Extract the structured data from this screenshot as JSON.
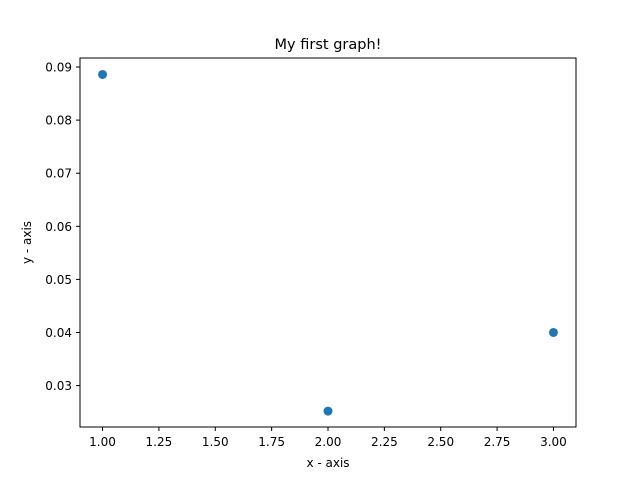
{
  "chart_data": {
    "type": "scatter",
    "title": "My first graph!",
    "xlabel": "x - axis",
    "ylabel": "y - axis",
    "xlim": [
      0.9,
      3.1
    ],
    "ylim": [
      0.0222,
      0.0917
    ],
    "xticks": [
      "1.00",
      "1.25",
      "1.50",
      "1.75",
      "2.00",
      "2.25",
      "2.50",
      "2.75",
      "3.00"
    ],
    "yticks": [
      "0.03",
      "0.04",
      "0.05",
      "0.06",
      "0.07",
      "0.08",
      "0.09"
    ],
    "grid": false,
    "legend": "none",
    "series": [
      {
        "color": "#1f77b4",
        "points": [
          {
            "x": 1.0,
            "y": 0.0886
          },
          {
            "x": 2.0,
            "y": 0.0252
          },
          {
            "x": 3.0,
            "y": 0.04
          }
        ]
      }
    ]
  }
}
